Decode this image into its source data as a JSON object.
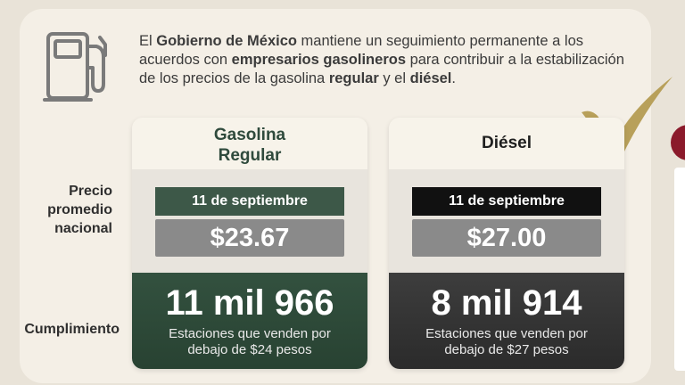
{
  "intro": {
    "t1": "El ",
    "b1": "Gobierno de México",
    "t2": " mantiene un seguimiento permanente a los acuerdos con ",
    "b2": "empresarios gasolineros",
    "t3": " para contribuir a la estabilización de los precios de la gasolina ",
    "b3": "regular",
    "t4": " y el ",
    "b4": "diésel",
    "t5": "."
  },
  "labels": {
    "precio_line1": "Precio",
    "precio_line2": "promedio",
    "precio_line3": "nacional",
    "cumplimiento": "Cumplimiento"
  },
  "columns": [
    {
      "title_line1": "Gasolina",
      "title_line2": "Regular",
      "date": "11 de septiembre",
      "price": "$23.67",
      "count": "11 mil 966",
      "desc_line1": "Estaciones que venden por",
      "desc_line2": "debajo de $24 pesos"
    },
    {
      "title_line1": "Diésel",
      "date": "11 de septiembre",
      "price": "$27.00",
      "count": "8 mil 914",
      "desc_line1": "Estaciones que venden por",
      "desc_line2": "debajo de $27 pesos"
    }
  ],
  "icons": {
    "pump": "gas-pump-icon",
    "check": "checkmark-icon"
  },
  "colors": {
    "green": "#3d5848",
    "black": "#111111",
    "gold": "#b8a05a",
    "guinda": "#8b1a2b"
  }
}
